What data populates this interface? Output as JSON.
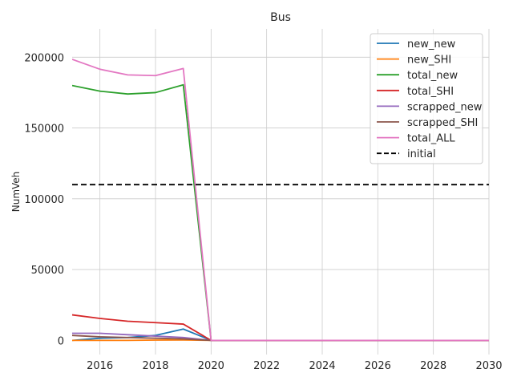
{
  "chart_data": {
    "type": "line",
    "title": "Bus",
    "xlabel": "",
    "ylabel": "NumVeh",
    "xlim": [
      2015,
      2030
    ],
    "ylim": [
      -10000,
      220000
    ],
    "xticks": [
      2016,
      2018,
      2020,
      2022,
      2024,
      2026,
      2028,
      2030
    ],
    "yticks": [
      0,
      50000,
      100000,
      150000,
      200000
    ],
    "grid": true,
    "legend_position": "top-right",
    "x": [
      2015,
      2016,
      2017,
      2018,
      2019,
      2020,
      2021,
      2022,
      2023,
      2024,
      2025,
      2026,
      2027,
      2028,
      2029,
      2030
    ],
    "series": [
      {
        "name": "new_new",
        "color": "#1f77b4",
        "style": "solid",
        "values": [
          0,
          1500,
          2000,
          3500,
          8000,
          0,
          0,
          0,
          0,
          0,
          0,
          0,
          0,
          0,
          0,
          0
        ]
      },
      {
        "name": "new_SHI",
        "color": "#ff7f0e",
        "style": "solid",
        "values": [
          0,
          0,
          0,
          200,
          300,
          0,
          0,
          0,
          0,
          0,
          0,
          0,
          0,
          0,
          0,
          0
        ]
      },
      {
        "name": "total_new",
        "color": "#2ca02c",
        "style": "solid",
        "values": [
          180000,
          176000,
          174000,
          175000,
          180500,
          0,
          0,
          0,
          0,
          0,
          0,
          0,
          0,
          0,
          0,
          0
        ]
      },
      {
        "name": "total_SHI",
        "color": "#d62728",
        "style": "solid",
        "values": [
          18000,
          15500,
          13500,
          12500,
          11500,
          0,
          0,
          0,
          0,
          0,
          0,
          0,
          0,
          0,
          0,
          0
        ]
      },
      {
        "name": "scrapped_new",
        "color": "#9467bd",
        "style": "solid",
        "values": [
          5000,
          5000,
          4000,
          3000,
          2000,
          0,
          0,
          0,
          0,
          0,
          0,
          0,
          0,
          0,
          0,
          0
        ]
      },
      {
        "name": "scrapped_SHI",
        "color": "#8c564b",
        "style": "solid",
        "values": [
          3500,
          2500,
          2000,
          1500,
          1000,
          0,
          0,
          0,
          0,
          0,
          0,
          0,
          0,
          0,
          0,
          0
        ]
      },
      {
        "name": "total_ALL",
        "color": "#e377c2",
        "style": "solid",
        "values": [
          198500,
          191500,
          187500,
          187000,
          192000,
          0,
          0,
          0,
          0,
          0,
          0,
          0,
          0,
          0,
          0,
          0
        ]
      },
      {
        "name": "initial",
        "color": "#000000",
        "style": "dashed",
        "values": [
          110000,
          110000,
          110000,
          110000,
          110000,
          110000,
          110000,
          110000,
          110000,
          110000,
          110000,
          110000,
          110000,
          110000,
          110000,
          110000
        ]
      }
    ]
  }
}
